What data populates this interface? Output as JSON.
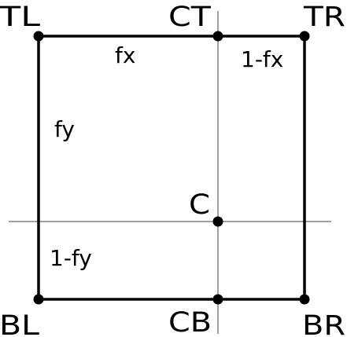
{
  "diagram": {
    "points": {
      "tl": "TL",
      "ct": "CT",
      "tr": "TR",
      "c": "C",
      "bl": "BL",
      "cb": "CB",
      "br": "BR"
    },
    "fractions": {
      "fx": "fx",
      "one_minus_fx": "1-fx",
      "fy": "fy",
      "one_minus_fy": "1-fy"
    },
    "colors": {
      "outline": "#000000",
      "guide": "#808080",
      "point": "#000000",
      "text": "#000000",
      "background": "#ffffff"
    }
  }
}
